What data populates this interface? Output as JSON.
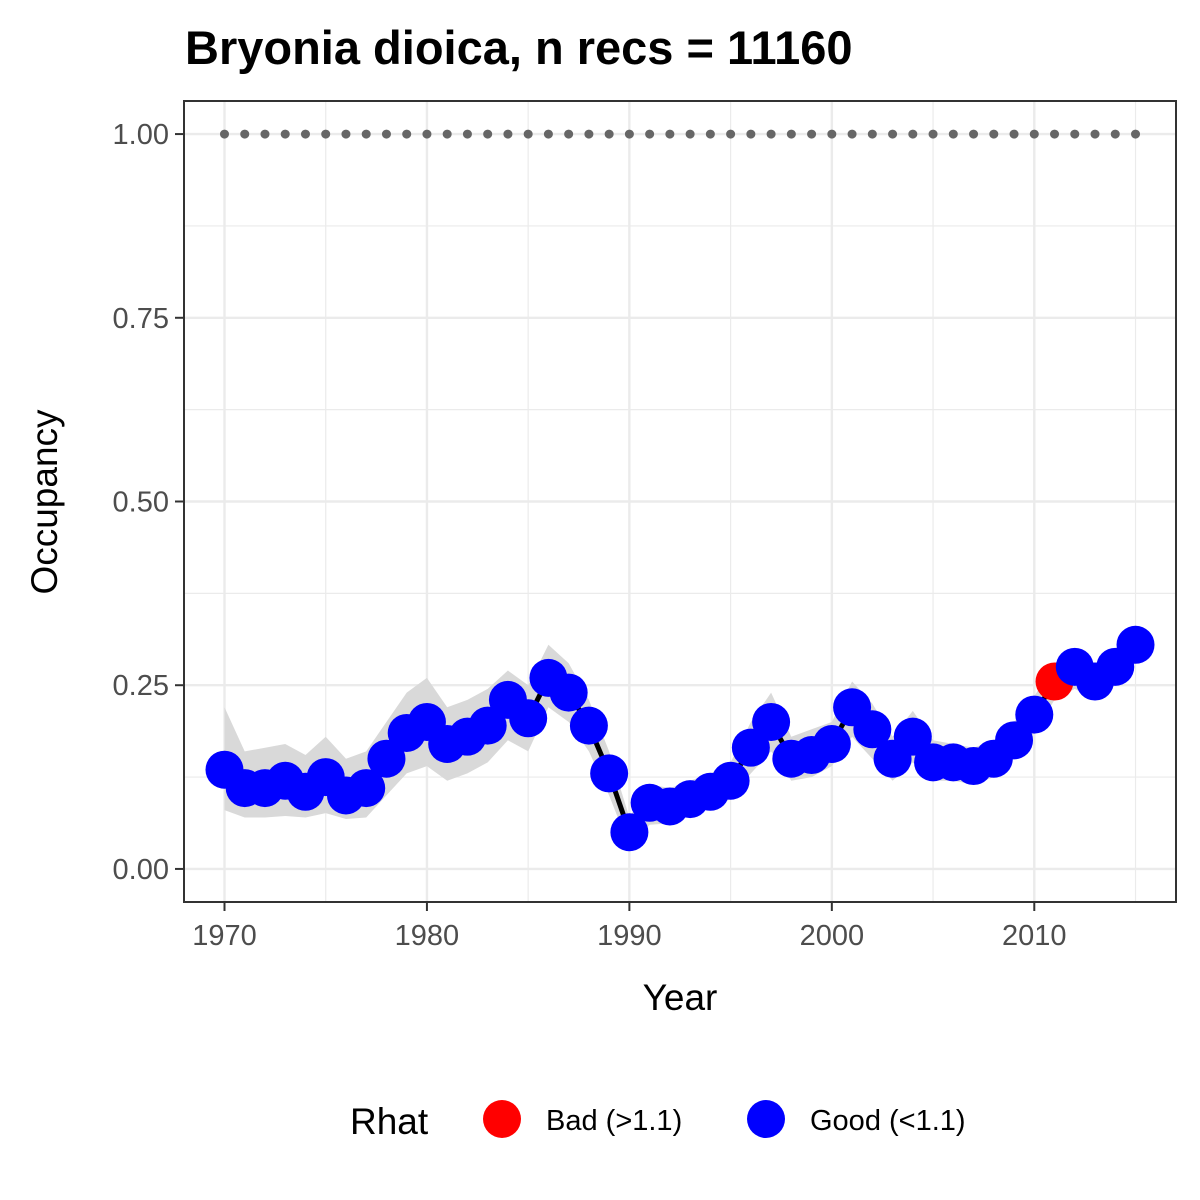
{
  "chart_data": {
    "type": "line",
    "title": "Bryonia dioica, n recs = 11160",
    "xlabel": "Year",
    "ylabel": "Occupancy",
    "xlim": [
      1968,
      2017
    ],
    "ylim": [
      -0.045,
      1.045
    ],
    "x_ticks": [
      1970,
      1980,
      1990,
      2000,
      2010
    ],
    "x_tick_labels": [
      "1970",
      "1980",
      "1990",
      "2000",
      "2010"
    ],
    "y_ticks": [
      0,
      0.25,
      0.5,
      0.75,
      1.0
    ],
    "y_tick_labels": [
      "0.00",
      "0.25",
      "0.50",
      "0.75",
      "1.00"
    ],
    "grid": true,
    "x": [
      1970,
      1971,
      1972,
      1973,
      1974,
      1975,
      1976,
      1977,
      1978,
      1979,
      1980,
      1981,
      1982,
      1983,
      1984,
      1985,
      1986,
      1987,
      1988,
      1989,
      1990,
      1991,
      1992,
      1993,
      1994,
      1995,
      1996,
      1997,
      1998,
      1999,
      2000,
      2001,
      2002,
      2003,
      2004,
      2005,
      2006,
      2007,
      2008,
      2009,
      2010,
      2011,
      2012,
      2013,
      2014,
      2015
    ],
    "series": [
      {
        "type": "line",
        "values": [
          0.135,
          0.11,
          0.11,
          0.12,
          0.105,
          0.125,
          0.1,
          0.11,
          0.15,
          0.185,
          0.2,
          0.17,
          0.18,
          0.195,
          0.23,
          0.205,
          0.26,
          0.24,
          0.195,
          0.13,
          0.05,
          0.09,
          0.085,
          0.095,
          0.105,
          0.12,
          0.165,
          0.2,
          0.15,
          0.155,
          0.17,
          0.22,
          0.19,
          0.15,
          0.18,
          0.145,
          0.145,
          0.14,
          0.15,
          0.175,
          0.21,
          0.255,
          0.275,
          0.255,
          0.275,
          0.305
        ],
        "lower": [
          0.08,
          0.07,
          0.07,
          0.072,
          0.07,
          0.076,
          0.068,
          0.07,
          0.1,
          0.13,
          0.14,
          0.12,
          0.13,
          0.145,
          0.175,
          0.16,
          0.22,
          0.2,
          0.16,
          0.1,
          0.03,
          0.06,
          0.062,
          0.075,
          0.082,
          0.095,
          0.13,
          0.16,
          0.12,
          0.125,
          0.14,
          0.18,
          0.15,
          0.12,
          0.145,
          0.12,
          0.12,
          0.115,
          0.125,
          0.15,
          0.185,
          0.23,
          0.245,
          0.23,
          0.25,
          0.28
        ],
        "upper": [
          0.22,
          0.16,
          0.165,
          0.17,
          0.155,
          0.18,
          0.15,
          0.16,
          0.2,
          0.24,
          0.26,
          0.22,
          0.23,
          0.245,
          0.27,
          0.25,
          0.305,
          0.28,
          0.23,
          0.16,
          0.07,
          0.115,
          0.11,
          0.12,
          0.13,
          0.145,
          0.2,
          0.24,
          0.18,
          0.19,
          0.2,
          0.255,
          0.225,
          0.18,
          0.215,
          0.175,
          0.17,
          0.165,
          0.175,
          0.2,
          0.235,
          0.28,
          0.3,
          0.28,
          0.3,
          0.33
        ],
        "rhat": [
          "Good (<1.1)",
          "Good (<1.1)",
          "Good (<1.1)",
          "Good (<1.1)",
          "Good (<1.1)",
          "Good (<1.1)",
          "Good (<1.1)",
          "Good (<1.1)",
          "Good (<1.1)",
          "Good (<1.1)",
          "Good (<1.1)",
          "Good (<1.1)",
          "Good (<1.1)",
          "Good (<1.1)",
          "Good (<1.1)",
          "Good (<1.1)",
          "Good (<1.1)",
          "Good (<1.1)",
          "Good (<1.1)",
          "Good (<1.1)",
          "Good (<1.1)",
          "Good (<1.1)",
          "Good (<1.1)",
          "Good (<1.1)",
          "Good (<1.1)",
          "Good (<1.1)",
          "Good (<1.1)",
          "Good (<1.1)",
          "Good (<1.1)",
          "Good (<1.1)",
          "Good (<1.1)",
          "Good (<1.1)",
          "Good (<1.1)",
          "Good (<1.1)",
          "Good (<1.1)",
          "Good (<1.1)",
          "Good (<1.1)",
          "Good (<1.1)",
          "Good (<1.1)",
          "Good (<1.1)",
          "Good (<1.1)",
          "Bad (>1.1)",
          "Good (<1.1)",
          "Good (<1.1)",
          "Good (<1.1)",
          "Good (<1.1)"
        ]
      },
      {
        "type": "reference-dots",
        "values": [
          1,
          1,
          1,
          1,
          1,
          1,
          1,
          1,
          1,
          1,
          1,
          1,
          1,
          1,
          1,
          1,
          1,
          1,
          1,
          1,
          1,
          1,
          1,
          1,
          1,
          1,
          1,
          1,
          1,
          1,
          1,
          1,
          1,
          1,
          1,
          1,
          1,
          1,
          1,
          1,
          1,
          1,
          1,
          1,
          1,
          1
        ]
      }
    ],
    "legend": {
      "title": "Rhat",
      "position": "bottom",
      "entries": [
        {
          "label": "Bad (>1.1)",
          "color": "#ff0000"
        },
        {
          "label": "Good (<1.1)",
          "color": "#0000ff"
        }
      ]
    },
    "colors": {
      "good": "#0000ff",
      "bad": "#ff0000",
      "ribbon": "#d9d9d9",
      "line": "#000000",
      "reference": "#666666",
      "grid": "#ebebeb",
      "panel_border": "#333333"
    }
  }
}
